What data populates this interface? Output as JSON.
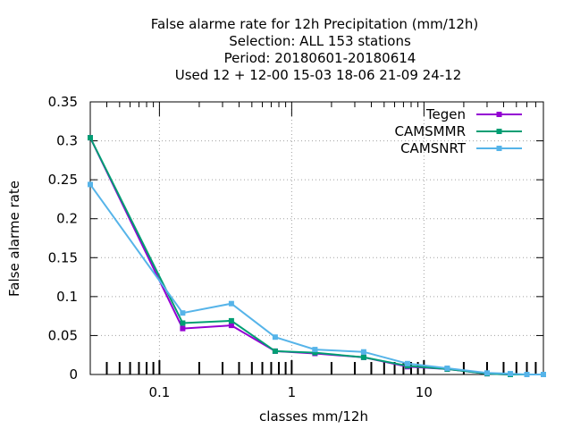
{
  "chart_data": {
    "type": "line",
    "title_lines": [
      "False alarme rate  for 12h Precipitation (mm/12h)",
      "Selection: ALL    153 stations",
      "Period: 20180601-20180614",
      "Used  12 + 12-00 15-03 18-06 21-09 24-12"
    ],
    "xlabel": "classes mm/12h",
    "ylabel": "False alarme rate",
    "x_scale": "log",
    "xlim": [
      0.03,
      80
    ],
    "ylim": [
      0,
      0.35
    ],
    "x_ticks": [
      0.1,
      1,
      10
    ],
    "x_tick_labels": [
      "0.1",
      "1",
      "10"
    ],
    "y_ticks": [
      0,
      0.05,
      0.1,
      0.15,
      0.2,
      0.25,
      0.3,
      0.35
    ],
    "y_tick_labels": [
      "0",
      "0.05",
      "0.1",
      "0.15",
      "0.2",
      "0.25",
      "0.3",
      "0.35"
    ],
    "grid": true,
    "legend_position": "top-right",
    "x": [
      0.03,
      0.15,
      0.35,
      0.75,
      1.5,
      3.5,
      7.5,
      15,
      30,
      45,
      60,
      80
    ],
    "series": [
      {
        "name": "Tegen",
        "color": "#9400d3",
        "values": [
          0.304,
          0.059,
          0.063,
          0.03,
          0.027,
          0.022,
          0.01,
          0.007,
          0.001,
          0.0,
          0.0,
          0.0
        ]
      },
      {
        "name": "CAMSMMR",
        "color": "#009e73",
        "values": [
          0.304,
          0.066,
          0.069,
          0.03,
          0.028,
          0.022,
          0.011,
          0.007,
          0.001,
          0.0,
          0.0,
          0.0
        ]
      },
      {
        "name": "CAMSNRT",
        "color": "#56b4e9",
        "values": [
          0.244,
          0.079,
          0.091,
          0.048,
          0.032,
          0.029,
          0.014,
          0.008,
          0.002,
          0.001,
          0.0,
          0.0
        ]
      }
    ]
  }
}
